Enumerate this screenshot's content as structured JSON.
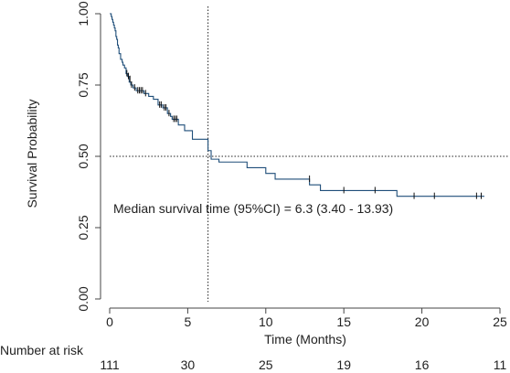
{
  "chart_data": {
    "type": "line",
    "subtype": "kaplan-meier",
    "xlabel": "Time (Months)",
    "ylabel": "Survival Probability",
    "xlim": [
      0,
      25
    ],
    "ylim": [
      0,
      1
    ],
    "x_ticks": [
      0,
      5,
      10,
      15,
      20,
      25
    ],
    "y_ticks": [
      0.0,
      0.25,
      0.5,
      0.75,
      1.0
    ],
    "y_tick_labels": [
      "0.00",
      "0.25",
      "0.50",
      "0.75",
      "1.00"
    ],
    "grid": false,
    "curve_color": "#1f4e79",
    "steps": [
      [
        0.0,
        1.0
      ],
      [
        0.1,
        0.99
      ],
      [
        0.15,
        0.98
      ],
      [
        0.2,
        0.97
      ],
      [
        0.25,
        0.96
      ],
      [
        0.3,
        0.95
      ],
      [
        0.35,
        0.94
      ],
      [
        0.4,
        0.92
      ],
      [
        0.45,
        0.91
      ],
      [
        0.5,
        0.89
      ],
      [
        0.55,
        0.88
      ],
      [
        0.6,
        0.86
      ],
      [
        0.7,
        0.84
      ],
      [
        0.8,
        0.83
      ],
      [
        0.85,
        0.82
      ],
      [
        0.95,
        0.81
      ],
      [
        1.05,
        0.79
      ],
      [
        1.15,
        0.78
      ],
      [
        1.25,
        0.76
      ],
      [
        1.35,
        0.75
      ],
      [
        1.5,
        0.74
      ],
      [
        1.7,
        0.73
      ],
      [
        2.2,
        0.72
      ],
      [
        2.5,
        0.71
      ],
      [
        2.8,
        0.7
      ],
      [
        3.1,
        0.68
      ],
      [
        3.4,
        0.67
      ],
      [
        3.7,
        0.65
      ],
      [
        3.9,
        0.64
      ],
      [
        4.0,
        0.63
      ],
      [
        4.4,
        0.61
      ],
      [
        4.8,
        0.59
      ],
      [
        5.3,
        0.56
      ],
      [
        6.3,
        0.52
      ],
      [
        6.5,
        0.49
      ],
      [
        7.0,
        0.48
      ],
      [
        8.8,
        0.46
      ],
      [
        10.0,
        0.44
      ],
      [
        10.6,
        0.42
      ],
      [
        12.8,
        0.4
      ],
      [
        13.5,
        0.38
      ],
      [
        18.4,
        0.36
      ],
      [
        24.0,
        0.36
      ]
    ],
    "censor_marks": [
      [
        1.1,
        0.79
      ],
      [
        1.2,
        0.78
      ],
      [
        1.3,
        0.77
      ],
      [
        1.4,
        0.75
      ],
      [
        1.6,
        0.74
      ],
      [
        1.8,
        0.73
      ],
      [
        1.9,
        0.73
      ],
      [
        2.0,
        0.73
      ],
      [
        2.1,
        0.73
      ],
      [
        2.3,
        0.72
      ],
      [
        3.2,
        0.68
      ],
      [
        3.3,
        0.68
      ],
      [
        3.5,
        0.67
      ],
      [
        3.6,
        0.67
      ],
      [
        3.8,
        0.65
      ],
      [
        4.1,
        0.63
      ],
      [
        4.2,
        0.63
      ],
      [
        4.3,
        0.63
      ],
      [
        12.8,
        0.42
      ],
      [
        15.0,
        0.38
      ],
      [
        17.0,
        0.38
      ],
      [
        19.5,
        0.36
      ],
      [
        20.8,
        0.36
      ],
      [
        23.5,
        0.36
      ],
      [
        23.8,
        0.36
      ]
    ],
    "median": {
      "x": 6.3,
      "y": 0.5
    },
    "annotation": "Median survival time (95%CI) = 6.3 (3.40 - 13.93)",
    "risk_table": {
      "label": "Number at risk",
      "times": [
        0,
        5,
        10,
        15,
        20,
        25
      ],
      "counts": [
        "111",
        "30",
        "25",
        "19",
        "16",
        "11"
      ]
    }
  }
}
